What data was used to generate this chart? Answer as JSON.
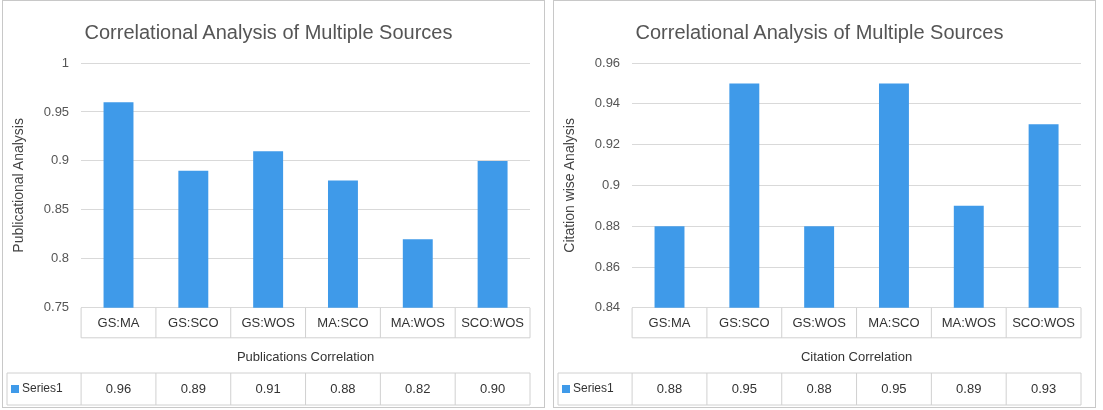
{
  "chart_data": [
    {
      "type": "bar",
      "title": "Correlational Analysis of Multiple Sources",
      "xlabel": "Publications Correlation",
      "ylabel": "Publicational Analysis",
      "categories": [
        "GS:MA",
        "GS:SCO",
        "GS:WOS",
        "MA:SCO",
        "MA:WOS",
        "SCO:WOS"
      ],
      "series": [
        {
          "name": "Series1",
          "color": "#3f9ae9",
          "values": [
            0.96,
            0.89,
            0.91,
            0.88,
            0.82,
            0.9
          ],
          "value_labels": [
            "0.96",
            "0.89",
            "0.91",
            "0.88",
            "0.82",
            "0.90"
          ]
        }
      ],
      "ylim": [
        0.75,
        1
      ],
      "yticks": [
        0.75,
        0.8,
        0.85,
        0.9,
        0.95,
        1
      ],
      "grid": "y",
      "legend": "bottom"
    },
    {
      "type": "bar",
      "title": "Correlational Analysis of Multiple Sources",
      "xlabel": "Citation Correlation",
      "ylabel": "Citation wise Analysis",
      "categories": [
        "GS:MA",
        "GS:SCO",
        "GS:WOS",
        "MA:SCO",
        "MA:WOS",
        "SCO:WOS"
      ],
      "series": [
        {
          "name": "Series1",
          "color": "#3f9ae9",
          "values": [
            0.88,
            0.95,
            0.88,
            0.95,
            0.89,
            0.93
          ],
          "value_labels": [
            "0.88",
            "0.95",
            "0.88",
            "0.95",
            "0.89",
            "0.93"
          ]
        }
      ],
      "ylim": [
        0.84,
        0.96
      ],
      "yticks": [
        0.84,
        0.86,
        0.88,
        0.9,
        0.92,
        0.94,
        0.96
      ],
      "grid": "y",
      "legend": "bottom"
    }
  ]
}
